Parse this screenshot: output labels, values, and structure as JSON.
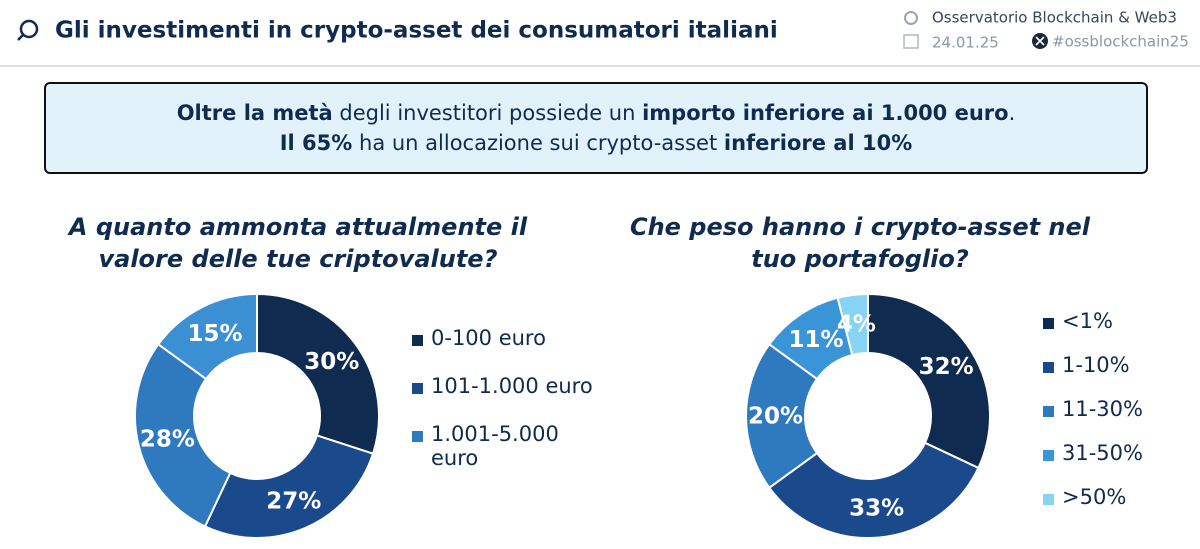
{
  "header": {
    "title": "Gli investimenti in crypto-asset dei consumatori italiani",
    "source": "Osservatorio Blockchain & Web3",
    "date": "24.01.25",
    "handle": "#ossblockchain25"
  },
  "callout": {
    "lines": [
      [
        {
          "text": "Oltre la metà",
          "bold": true
        },
        {
          "text": " degli investitori possiede un ",
          "bold": false
        },
        {
          "text": "importo inferiore ai 1.000 euro",
          "bold": true
        },
        {
          "text": ".",
          "bold": false
        }
      ],
      [
        {
          "text": "Il 65%",
          "bold": true
        },
        {
          "text": " ha un allocazione sui crypto-asset ",
          "bold": false
        },
        {
          "text": "inferiore al 10%",
          "bold": true
        }
      ]
    ]
  },
  "chart_data": [
    {
      "type": "donut",
      "title_lines": [
        "A quanto ammonta attualmente il",
        "valore delle tue criptovalute?"
      ],
      "categories": [
        "0-100 euro",
        "101-1.000 euro",
        "1.001-5.000 euro",
        null
      ],
      "values": [
        30,
        27,
        28,
        15
      ],
      "value_labels": [
        "30%",
        "27%",
        "28%",
        "15%"
      ],
      "colors": [
        "#0f2b50",
        "#1b4a8c",
        "#2f79be",
        "#3b8fd3"
      ]
    },
    {
      "type": "donut",
      "title_lines": [
        "Che peso hanno i crypto-asset nel",
        "tuo portafoglio?"
      ],
      "categories": [
        "<1%",
        "1-10%",
        "11-30%",
        "31-50%",
        ">50%"
      ],
      "values": [
        32,
        33,
        20,
        11,
        4
      ],
      "value_labels": [
        "32%",
        "33%",
        "20%",
        "11%",
        "4%"
      ],
      "colors": [
        "#0f2b50",
        "#1b4a8c",
        "#2f79be",
        "#3a95d8",
        "#86d3f2"
      ]
    }
  ]
}
